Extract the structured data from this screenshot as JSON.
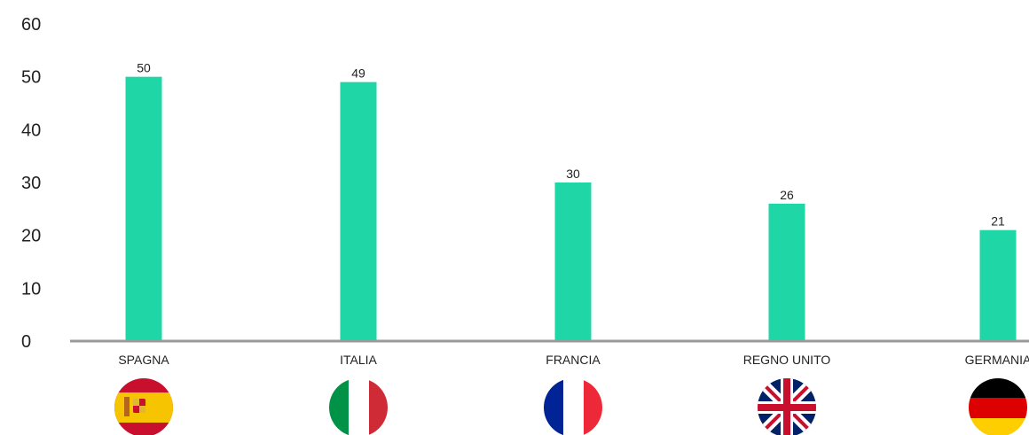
{
  "chart_data": {
    "type": "bar",
    "categories": [
      "SPAGNA",
      "ITALIA",
      "FRANCIA",
      "REGNO UNITO",
      "GERMANIA"
    ],
    "values": [
      50,
      49,
      30,
      26,
      21
    ],
    "ylim": [
      0,
      60
    ],
    "yticks": [
      "0",
      "10",
      "20",
      "30",
      "40",
      "50",
      "60"
    ],
    "title": "",
    "xlabel": "",
    "ylabel": "",
    "grid": false,
    "legend": "none",
    "bar_color": "#1fd6a7",
    "axis_color": "#9a9a9a",
    "flag_icons": [
      "spain-flag-icon",
      "italy-flag-icon",
      "france-flag-icon",
      "uk-flag-icon",
      "germany-flag-icon"
    ]
  }
}
